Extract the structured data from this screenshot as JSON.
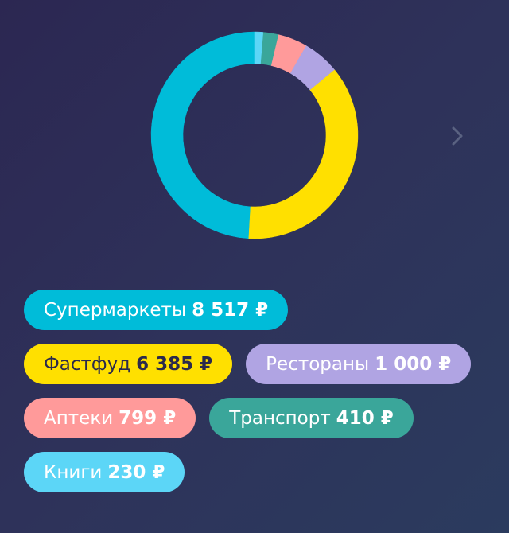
{
  "chart_data": {
    "type": "pie",
    "style": "donut",
    "segments": [
      {
        "name": "Супермаркеты",
        "value": 8517,
        "color": "#00bcd9"
      },
      {
        "name": "Фастфуд",
        "value": 6385,
        "color": "#ffe000"
      },
      {
        "name": "Рестораны",
        "value": 1000,
        "color": "#b0a4e3"
      },
      {
        "name": "Аптеки",
        "value": 799,
        "color": "#ff9a9a"
      },
      {
        "name": "Транспорт",
        "value": 410,
        "color": "#3aa69a"
      },
      {
        "name": "Книги",
        "value": 230,
        "color": "#5cd6f7"
      }
    ],
    "direction": "counterclockwise from top"
  },
  "categories": [
    {
      "label": "Супермаркеты",
      "amount": "8 517 ₽",
      "color": "#00bcd9",
      "text_color": "#ffffff",
      "row": 0
    },
    {
      "label": "Фастфуд",
      "amount": "6 385 ₽",
      "color": "#ffe000",
      "text_color": "#2b2a4c",
      "row": 1
    },
    {
      "label": "Рестораны",
      "amount": "1 000 ₽",
      "color": "#b0a4e3",
      "text_color": "#ffffff",
      "row": 1
    },
    {
      "label": "Аптеки",
      "amount": "799 ₽",
      "color": "#ff9a9a",
      "text_color": "#ffffff",
      "row": 2
    },
    {
      "label": "Транспорт",
      "amount": "410 ₽",
      "color": "#3aa69a",
      "text_color": "#ffffff",
      "row": 2
    },
    {
      "label": "Книги",
      "amount": "230 ₽",
      "color": "#5cd6f7",
      "text_color": "#ffffff",
      "row": 3
    }
  ],
  "navigation": {
    "next_icon": "chevron-right-icon",
    "next_color": "#5a6281"
  }
}
